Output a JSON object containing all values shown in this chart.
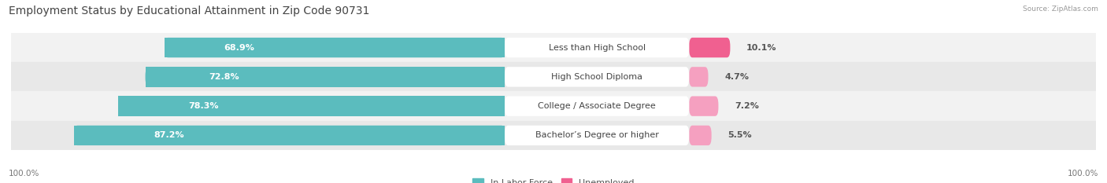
{
  "title": "Employment Status by Educational Attainment in Zip Code 90731",
  "source": "Source: ZipAtlas.com",
  "categories": [
    "Less than High School",
    "High School Diploma",
    "College / Associate Degree",
    "Bachelor’s Degree or higher"
  ],
  "labor_force": [
    68.9,
    72.8,
    78.3,
    87.2
  ],
  "unemployed": [
    10.1,
    4.7,
    7.2,
    5.5
  ],
  "labor_force_color": "#5bbcbe",
  "unemployed_color_dark": "#f06090",
  "unemployed_color_light": "#f5a0c0",
  "row_bg_even": "#f2f2f2",
  "row_bg_odd": "#e8e8e8",
  "fig_bg": "#ffffff",
  "title_fontsize": 10,
  "label_fontsize": 8,
  "pct_fontsize": 8,
  "tick_fontsize": 7.5,
  "legend_fontsize": 8,
  "axis_label_left": "100.0%",
  "axis_label_right": "100.0%"
}
